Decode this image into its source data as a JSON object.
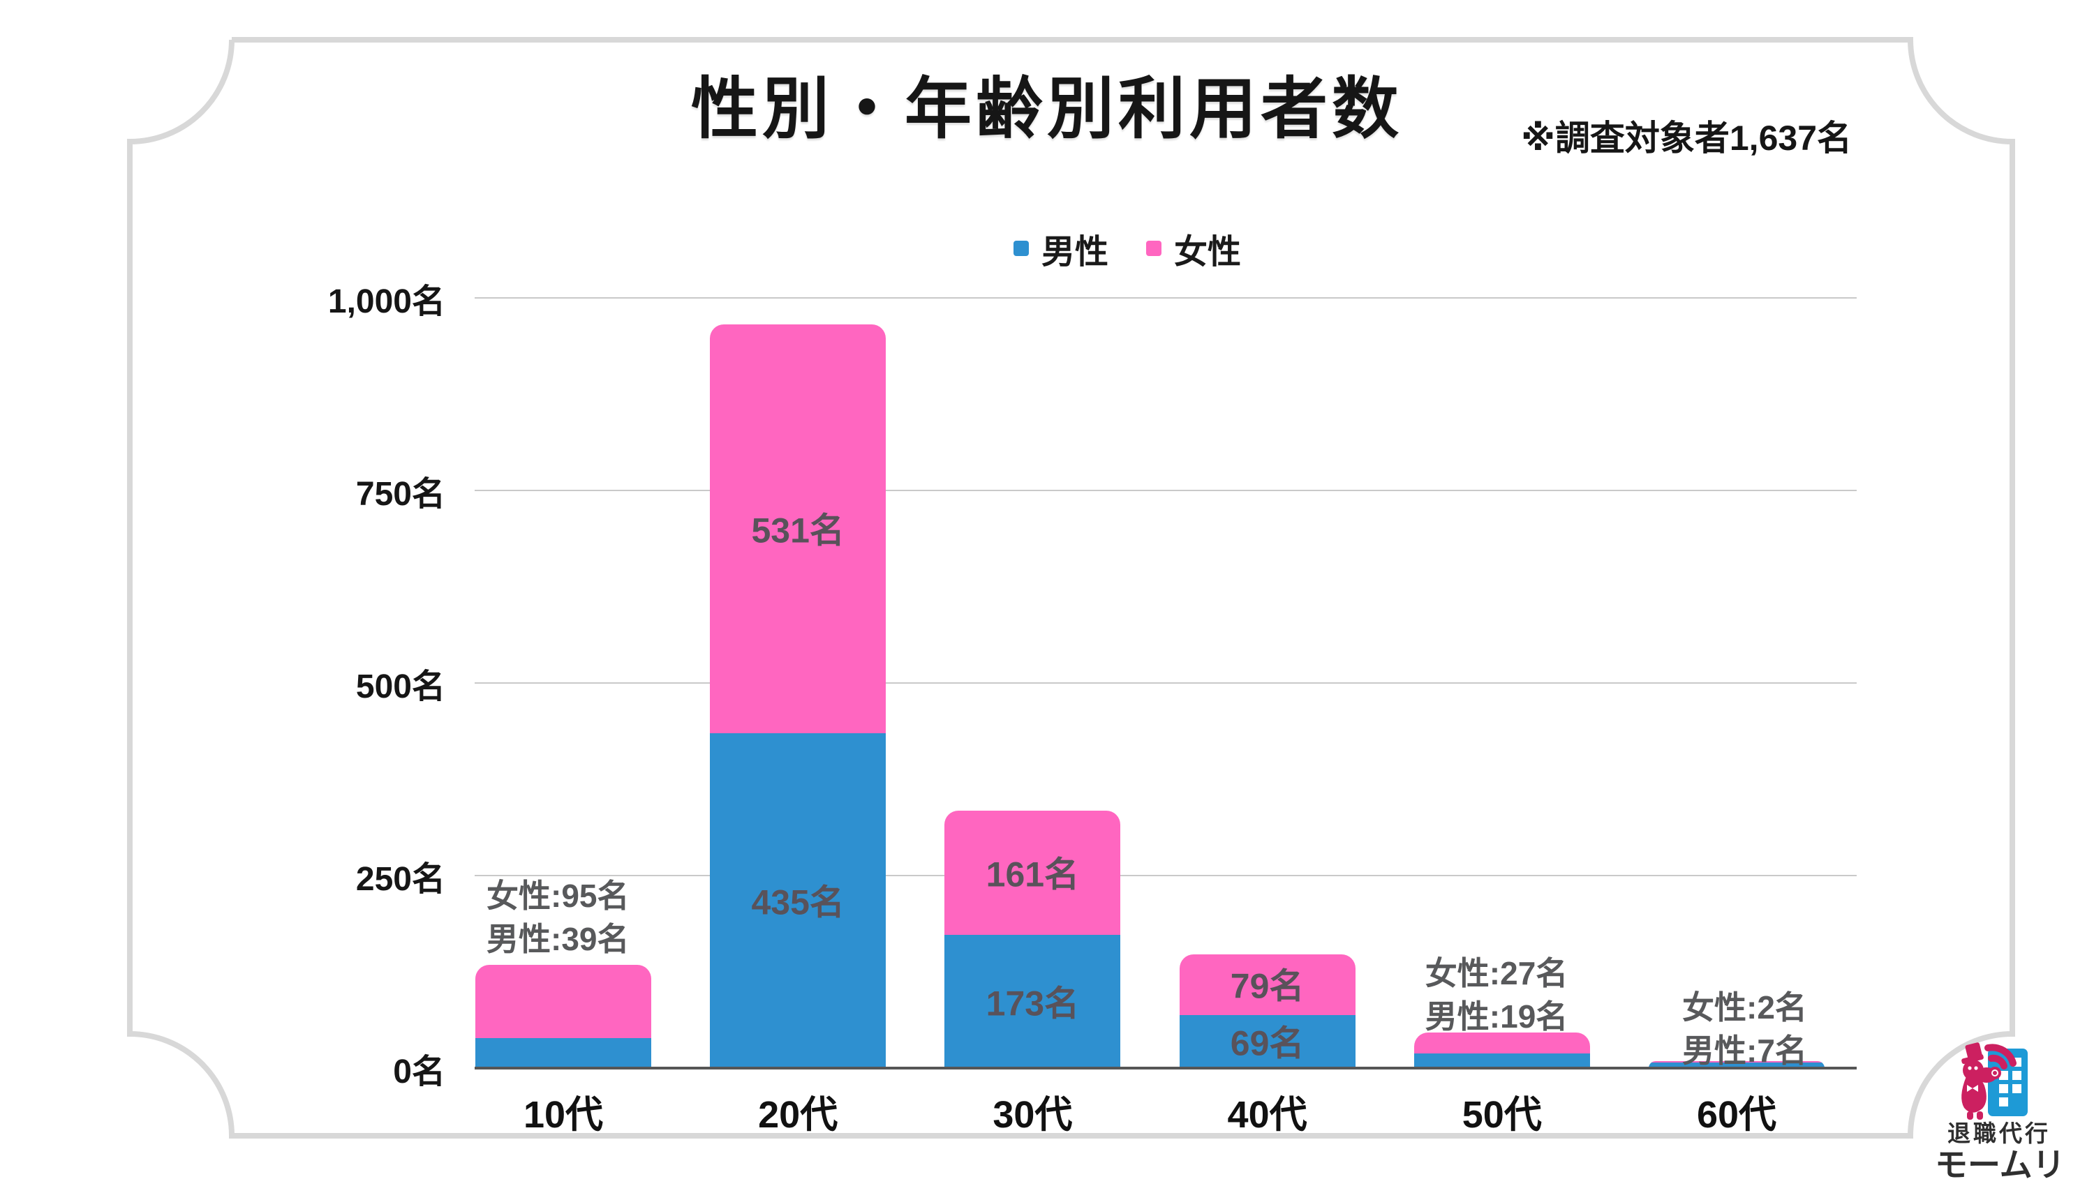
{
  "title": "性別・年齢別利用者数",
  "note": "※調査対象者1,637名",
  "legend": {
    "male_label": "男性",
    "female_label": "女性"
  },
  "colors": {
    "male": "#2e90d0",
    "female": "#ff66c0",
    "grid": "#c9c9c9",
    "axis": "#565656",
    "frame": "#d8d8d8",
    "label_gray": "#58595b",
    "logo_crimson": "#cc2060",
    "logo_blue": "#1e9ad6"
  },
  "chart_data": {
    "type": "bar",
    "stacked": true,
    "title": "性別・年齢別利用者数",
    "categories": [
      "10代",
      "20代",
      "30代",
      "40代",
      "50代",
      "60代"
    ],
    "series": [
      {
        "name": "男性",
        "color": "#2e90d0",
        "values": [
          39,
          435,
          173,
          69,
          19,
          7
        ]
      },
      {
        "name": "女性",
        "color": "#ff66c0",
        "values": [
          95,
          531,
          161,
          79,
          27,
          2
        ]
      }
    ],
    "ylim": [
      0,
      1000
    ],
    "y_ticks": [
      {
        "value": 0,
        "label": "0名"
      },
      {
        "value": 250,
        "label": "250名"
      },
      {
        "value": 500,
        "label": "500名"
      },
      {
        "value": 750,
        "label": "750名"
      },
      {
        "value": 1000,
        "label": "1,000名"
      }
    ],
    "grid": true,
    "legend_position": "top",
    "bar_labels": [
      null,
      {
        "female": "531名",
        "male": "435名"
      },
      {
        "female": "161名",
        "male": "173名"
      },
      {
        "female": "79名",
        "male": "69名"
      },
      null,
      null
    ],
    "annotations": [
      {
        "category": "10代",
        "lines": [
          "女性:95名",
          "男性:39名"
        ]
      },
      {
        "category": "50代",
        "lines": [
          "女性:27名",
          "男性:19名"
        ]
      },
      {
        "category": "60代",
        "lines": [
          "女性:2名",
          "男性:7名"
        ]
      }
    ]
  },
  "logo": {
    "tagline": "退職代行",
    "brand": "モームリ"
  }
}
